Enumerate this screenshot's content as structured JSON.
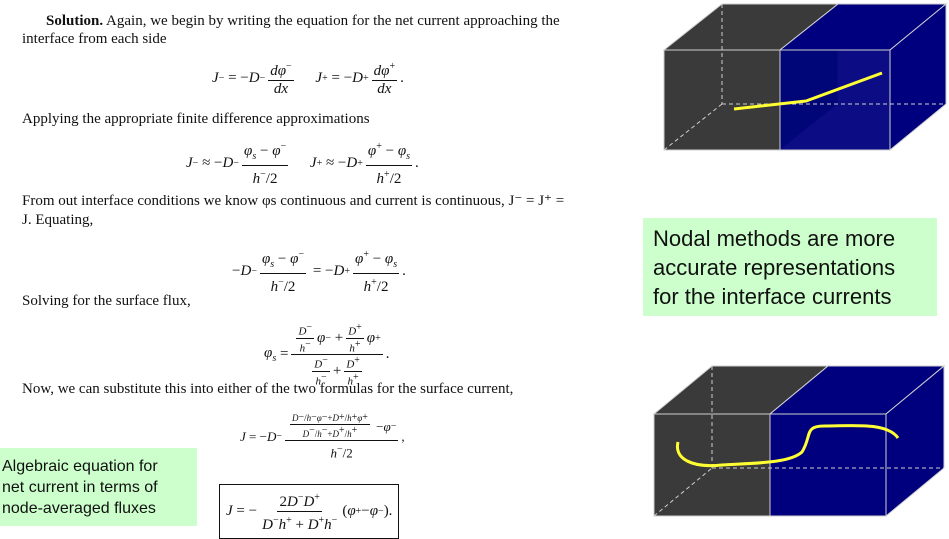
{
  "solution": {
    "heading": "Solution.",
    "intro_line1": "Again, we begin by writing the equation for the net current approaching the",
    "intro_line2": "interface from each side"
  },
  "text": {
    "applying": "Applying the appropriate finite difference approximations",
    "interface_line1": "From out interface conditions we know φs continuous and current is continuous, J⁻ = J⁺ =",
    "interface_line2": "J. Equating,",
    "solving": "Solving for the surface flux,",
    "substitute": "Now, we can substitute this into either of the two formulas for the surface current,"
  },
  "callouts": {
    "nodal": [
      "Nodal methods are more",
      "accurate representations",
      "for the interface currents"
    ],
    "algebraic": [
      "Algebraic equation for",
      "net current in terms of",
      "node-averaged fluxes"
    ]
  },
  "colors": {
    "left_region": "#3a3a3a",
    "interface": "#006400",
    "right_region": "#00007f",
    "curve": "#ffff33",
    "callout_bg": "#ccffcc"
  }
}
